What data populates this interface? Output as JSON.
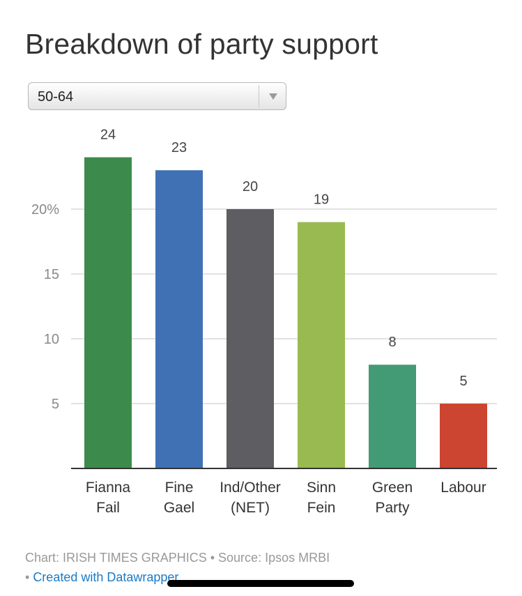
{
  "title": "Breakdown of party support",
  "dropdown": {
    "selected": "50-64"
  },
  "chart_data": {
    "type": "bar",
    "categories": [
      [
        "Fianna",
        "Fail"
      ],
      [
        "Fine",
        "Gael"
      ],
      [
        "Ind/Other",
        "(NET)"
      ],
      [
        "Sinn",
        "Fein"
      ],
      [
        "Green",
        "Party"
      ],
      [
        "Labour"
      ]
    ],
    "values": [
      24,
      23,
      20,
      19,
      8,
      5
    ],
    "colors": [
      "#3d8a4d",
      "#4171b5",
      "#5d5d62",
      "#99ba51",
      "#429b74",
      "#cc4531"
    ],
    "ylim": [
      0,
      24
    ],
    "yticks": [
      {
        "value": 5,
        "label": "5"
      },
      {
        "value": 10,
        "label": "10"
      },
      {
        "value": 15,
        "label": "15"
      },
      {
        "value": 20,
        "label": "20%"
      }
    ],
    "grid": true
  },
  "footer": {
    "credit": "Chart: IRISH TIMES GRAPHICS",
    "separator": " • ",
    "source": "Source: Ipsos MRBI",
    "bullet": "• ",
    "link_text": "Created with Datawrapper"
  }
}
